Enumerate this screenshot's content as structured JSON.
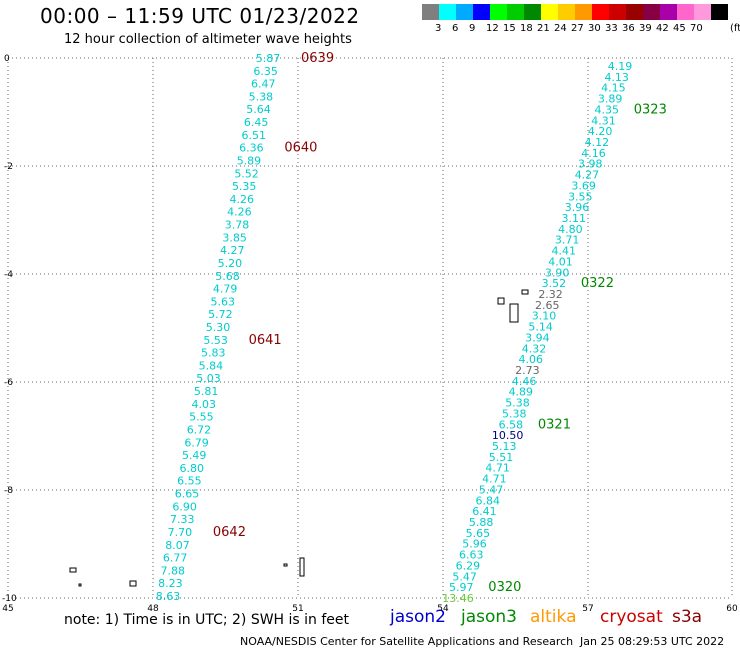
{
  "title": "00:00 – 11:59 UTC 01/23/2022",
  "subtitle": "12 hour collection of altimeter wave heights",
  "legend": {
    "colors": [
      "#7f7f7f",
      "#00ffff",
      "#00aaff",
      "#0000ff",
      "#00ff00",
      "#00cc00",
      "#008800",
      "#ffff00",
      "#ffcc00",
      "#ff9900",
      "#ff0000",
      "#cc0000",
      "#990000",
      "#880044",
      "#aa00aa",
      "#ff66cc",
      "#ff99dd",
      "#000000"
    ],
    "labels": [
      "3",
      "6",
      "9",
      "12",
      "15",
      "18",
      "21",
      "24",
      "27",
      "30",
      "33",
      "36",
      "39",
      "42",
      "45",
      "70"
    ],
    "unit": "(ft)"
  },
  "axes": {
    "x_labels": [
      "45",
      "48",
      "51",
      "54",
      "57",
      "60"
    ],
    "y_labels": [
      "0",
      "-2",
      "-4",
      "-6",
      "-8",
      "-10"
    ]
  },
  "tracks": [
    {
      "name": "left",
      "times": [
        {
          "label": "0639",
          "color": "#880000"
        },
        {
          "label": "0640",
          "color": "#880000"
        },
        {
          "label": "0641",
          "color": "#880000"
        },
        {
          "label": "0642",
          "color": "#880000"
        }
      ],
      "values": [
        "5.87",
        "6.35",
        "6.47",
        "5.38",
        "5.64",
        "6.45",
        "6.51",
        "6.36",
        "5.89",
        "5.52",
        "5.35",
        "4.26",
        "4.26",
        "3.78",
        "3.85",
        "4.27",
        "5.20",
        "5.68",
        "4.79",
        "5.63",
        "5.72",
        "5.30",
        "5.53",
        "5.83",
        "5.84",
        "5.03",
        "5.81",
        "4.03",
        "5.55",
        "6.72",
        "6.79",
        "5.49",
        "6.80",
        "6.55",
        "6.65",
        "6.90",
        "7.33",
        "7.70",
        "8.07",
        "6.77",
        "7.88",
        "8.23",
        "8.63"
      ],
      "colors": [
        "#00cccc",
        "#00cccc",
        "#00cccc",
        "#00cccc",
        "#00cccc",
        "#00cccc",
        "#00cccc",
        "#00cccc",
        "#00cccc",
        "#00cccc",
        "#00cccc",
        "#00cccc",
        "#00cccc",
        "#00cccc",
        "#00cccc",
        "#00cccc",
        "#00cccc",
        "#00cccc",
        "#00cccc",
        "#00cccc",
        "#00cccc",
        "#00cccc",
        "#00cccc",
        "#00cccc",
        "#00cccc",
        "#00cccc",
        "#00cccc",
        "#00cccc",
        "#00cccc",
        "#00cccc",
        "#00cccc",
        "#00cccc",
        "#00cccc",
        "#00cccc",
        "#00cccc",
        "#00cccc",
        "#00cccc",
        "#00cccc",
        "#00cccc",
        "#00cccc",
        "#00cccc",
        "#00cccc",
        "#00cccc"
      ]
    },
    {
      "name": "right",
      "times": [
        {
          "label": "0323",
          "color": "#008800"
        },
        {
          "label": "0322",
          "color": "#008800"
        },
        {
          "label": "0321",
          "color": "#008800"
        },
        {
          "label": "0320",
          "color": "#008800"
        }
      ],
      "values": [
        "4.19",
        "4.13",
        "4.15",
        "3.89",
        "4.35",
        "4.31",
        "4.20",
        "4.12",
        "4.16",
        "3.98",
        "4.27",
        "3.69",
        "3.55",
        "3.96",
        "3.11",
        "4.80",
        "3.71",
        "4.41",
        "4.01",
        "3.90",
        "3.52",
        "2.32",
        "2.65",
        "3.10",
        "5.14",
        "3.94",
        "4.32",
        "4.06",
        "2.73",
        "4.46",
        "4.89",
        "5.38",
        "5.38",
        "6.58",
        "10.50",
        "5.13",
        "5.51",
        "4.71",
        "4.71",
        "5.47",
        "6.84",
        "6.41",
        "5.88",
        "5.65",
        "5.96",
        "6.63",
        "6.29",
        "5.47",
        "5.97",
        "13.46"
      ],
      "colors": [
        "#00cccc",
        "#00cccc",
        "#00cccc",
        "#00cccc",
        "#00cccc",
        "#00cccc",
        "#00cccc",
        "#00cccc",
        "#00cccc",
        "#00cccc",
        "#00cccc",
        "#00cccc",
        "#00cccc",
        "#00cccc",
        "#00cccc",
        "#00cccc",
        "#00cccc",
        "#00cccc",
        "#00cccc",
        "#00cccc",
        "#00cccc",
        "#666666",
        "#666666",
        "#00cccc",
        "#00cccc",
        "#00cccc",
        "#00cccc",
        "#00cccc",
        "#666666",
        "#00cccc",
        "#00cccc",
        "#00cccc",
        "#00cccc",
        "#00cccc",
        "#000088",
        "#00cccc",
        "#00cccc",
        "#00cccc",
        "#00cccc",
        "#00cccc",
        "#00cccc",
        "#00cccc",
        "#00cccc",
        "#00cccc",
        "#00cccc",
        "#00cccc",
        "#00cccc",
        "#00cccc",
        "#00cccc",
        "#66cc33"
      ]
    }
  ],
  "footer": {
    "note": "note:  1) Time is in UTC; 2) SWH is in feet",
    "satellites": [
      {
        "label": "jason2",
        "color": "#0000cc"
      },
      {
        "label": "jason3",
        "color": "#008800"
      },
      {
        "label": "altika",
        "color": "#ff9900"
      },
      {
        "label": "cryosat",
        "color": "#cc0000"
      },
      {
        "label": "s3a",
        "color": "#880000"
      }
    ],
    "credit": "NOAA/NESDIS Center for Satellite Applications and Research",
    "timestamp": "Jan 25 08:29:53 UTC 2022"
  }
}
